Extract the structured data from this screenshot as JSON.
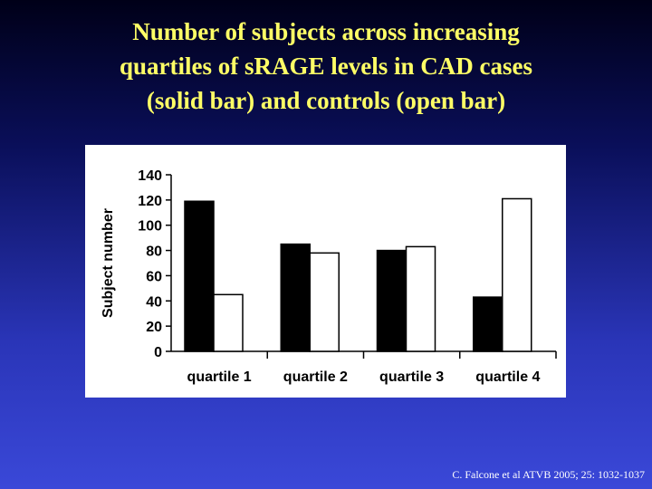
{
  "slide": {
    "title_lines": [
      "Number of subjects across increasing",
      "quartiles of sRAGE levels in CAD cases",
      "(solid bar) and controls (open bar)"
    ],
    "citation": "C. Falcone et al ATVB 2005; 25: 1032-1037"
  },
  "colors": {
    "title": "#ffff66",
    "cases_fill": "#000000",
    "controls_fill": "#ffffff",
    "panel": "#ffffff"
  },
  "chart_data": {
    "type": "bar",
    "categories": [
      "quartile 1",
      "quartile 2",
      "quartile 3",
      "quartile 4"
    ],
    "series": [
      {
        "values": [
          119,
          85,
          80,
          43
        ],
        "fill": "#000000"
      },
      {
        "values": [
          45,
          78,
          83,
          121
        ],
        "fill": "#ffffff"
      }
    ],
    "ylabel": "Subject number",
    "ylim": [
      0,
      140
    ],
    "yticks": [
      0,
      20,
      40,
      60,
      80,
      100,
      120,
      140
    ],
    "grid": false,
    "legend": "none"
  }
}
